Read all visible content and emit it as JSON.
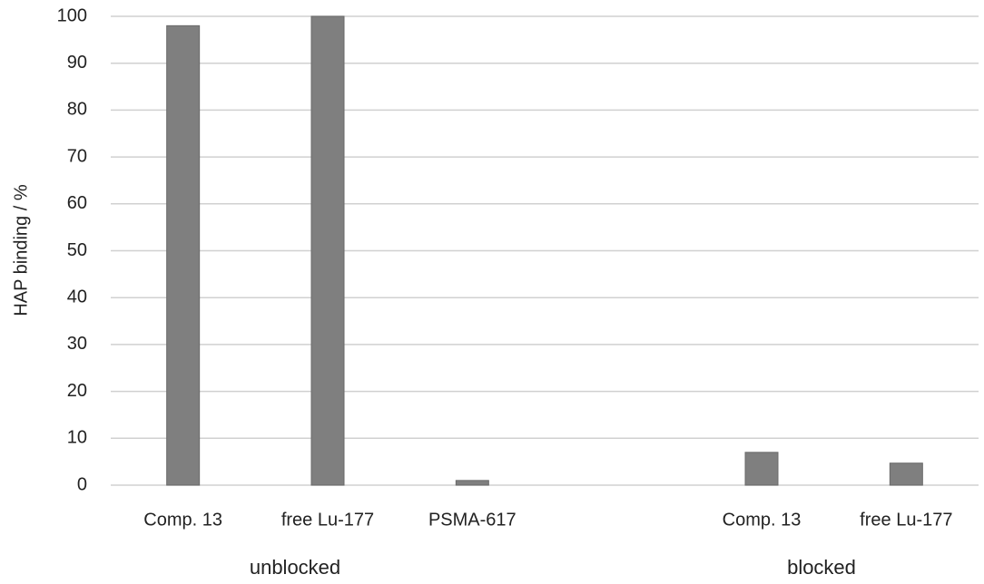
{
  "chart_data": {
    "type": "bar",
    "y_label": "HAP binding / %",
    "categories": [
      "Comp. 13",
      "free Lu-177",
      "PSMA-617",
      null,
      "Comp. 13",
      "free Lu-177"
    ],
    "values": [
      98,
      100,
      1,
      null,
      7,
      4.7
    ],
    "group_labels": [
      "unblocked",
      "blocked"
    ],
    "color": "#7f7f7f",
    "ylim": [
      0,
      100
    ],
    "yticks": [
      0,
      10,
      20,
      30,
      40,
      50,
      60,
      70,
      80,
      90,
      100
    ],
    "grid": true
  }
}
